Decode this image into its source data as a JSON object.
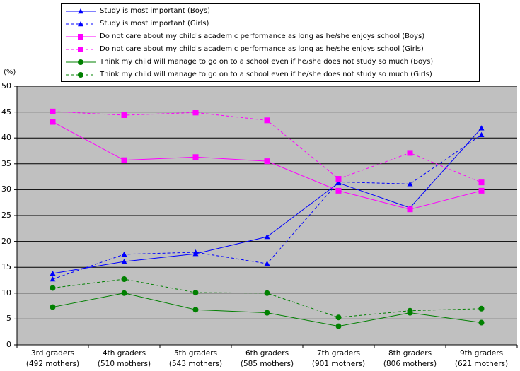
{
  "chart_data": {
    "type": "line",
    "unit_label": "(%)",
    "ylim": [
      0,
      50
    ],
    "yticks": [
      "0",
      "5",
      "10",
      "15",
      "20",
      "25",
      "30",
      "35",
      "40",
      "45",
      "50"
    ],
    "categories": [
      {
        "line1": "3rd graders",
        "line2": "(492 mothers)"
      },
      {
        "line1": "4th graders",
        "line2": "(510 mothers)"
      },
      {
        "line1": "5th graders",
        "line2": "(543 mothers)"
      },
      {
        "line1": "6th graders",
        "line2": "(585 mothers)"
      },
      {
        "line1": "7th graders",
        "line2": "(901 mothers)"
      },
      {
        "line1": "8th graders",
        "line2": "(806 mothers)"
      },
      {
        "line1": "9th graders",
        "line2": "(621 mothers)"
      }
    ],
    "grid": "horizontal",
    "legend_position": "top",
    "series": [
      {
        "name": "Study is most important (Boys)",
        "color": "#0000ff",
        "marker": "triangle",
        "dash": false,
        "values": [
          13.8,
          16.1,
          17.6,
          20.9,
          31.3,
          26.5,
          41.9
        ]
      },
      {
        "name": "Study is most important (Girls)",
        "color": "#0000ff",
        "marker": "triangle",
        "dash": true,
        "values": [
          12.7,
          17.5,
          17.9,
          15.7,
          31.5,
          31.1,
          40.6
        ]
      },
      {
        "name": "Do not care about my child's academic performance as long as he/she enjoys school (Boys)",
        "color": "#ff00ff",
        "marker": "square",
        "dash": false,
        "values": [
          43.1,
          35.7,
          36.3,
          35.5,
          29.8,
          26.2,
          29.8
        ]
      },
      {
        "name": "Do not care about my child's academic performance as long as he/she enjoys school (Girls)",
        "color": "#ff00ff",
        "marker": "square",
        "dash": true,
        "values": [
          45.1,
          44.4,
          44.9,
          43.4,
          32.1,
          37.1,
          31.4
        ]
      },
      {
        "name": "Think my child will manage to go on to a school even if he/she does not study so much (Boys)",
        "color": "#008000",
        "marker": "circle",
        "dash": false,
        "values": [
          7.3,
          10.0,
          6.8,
          6.2,
          3.6,
          6.2,
          4.3
        ]
      },
      {
        "name": "Think my child will manage to go on to a school even if he/she does not study so much (Girls)",
        "color": "#008000",
        "marker": "circle",
        "dash": true,
        "values": [
          11.0,
          12.7,
          10.1,
          10.0,
          5.3,
          6.6,
          7.0
        ]
      }
    ]
  }
}
